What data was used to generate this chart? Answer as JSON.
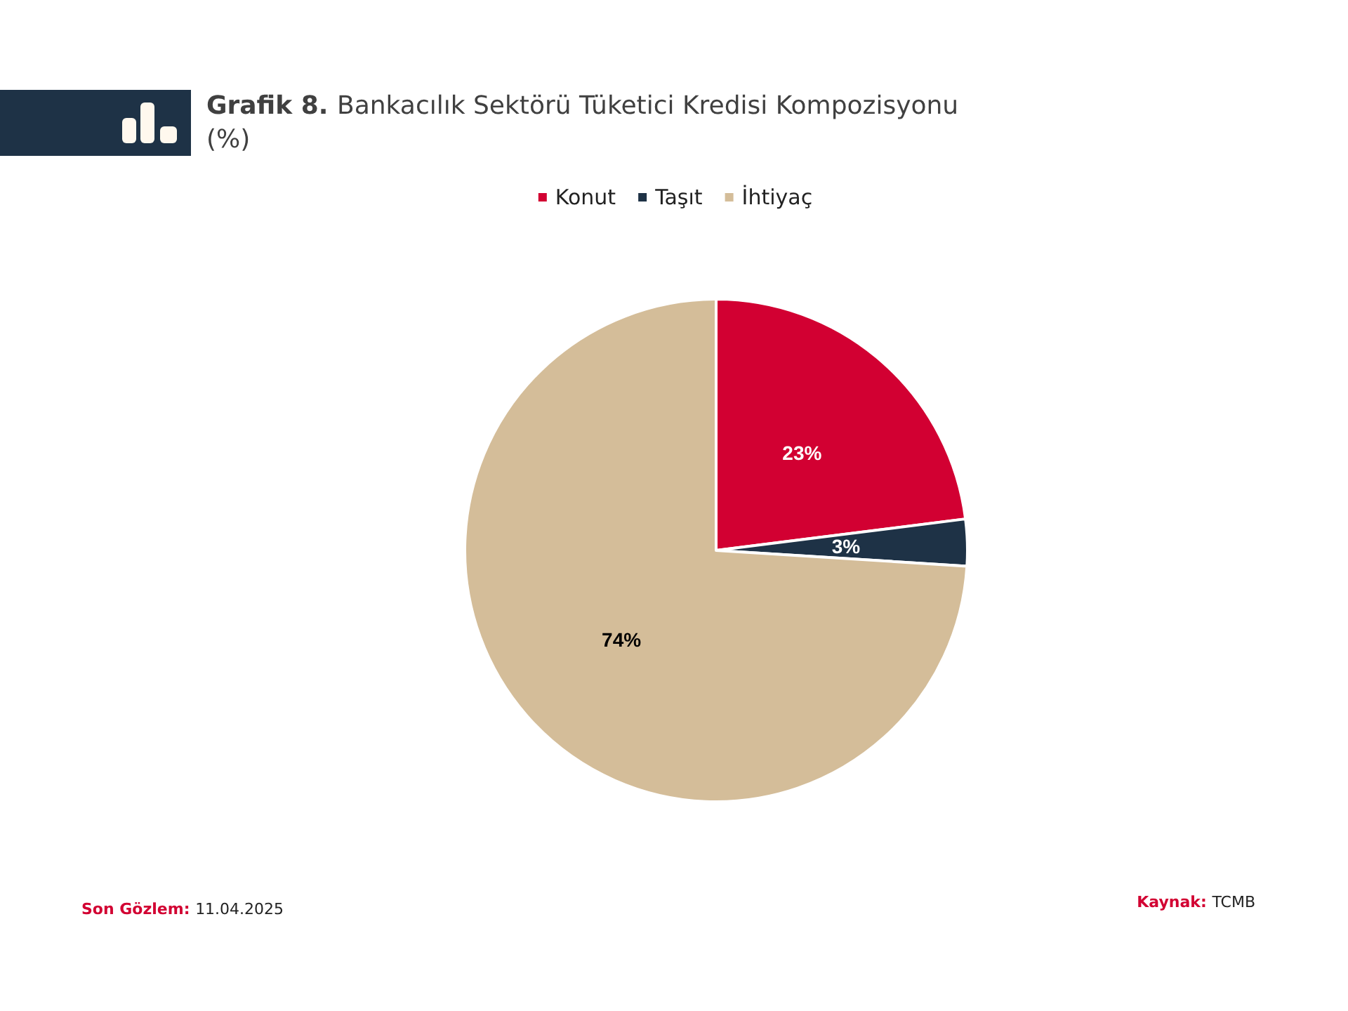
{
  "chart_data": {
    "type": "pie",
    "title": "Grafik 8. Bankacılık Sektörü Tüketici Kredisi Kompozisyonu",
    "subtitle": "(%)",
    "categories": [
      "Konut",
      "Taşıt",
      "İhtiyaç"
    ],
    "values": [
      23,
      3,
      74
    ],
    "colors": [
      "#d20032",
      "#1e3246",
      "#d4bd99"
    ],
    "value_labels": [
      "23%",
      "3%",
      "74%"
    ],
    "legend": "top",
    "annotations": [
      "Son Gözlem: 11.04.2025",
      "Kaynak: TCMB"
    ]
  }
}
